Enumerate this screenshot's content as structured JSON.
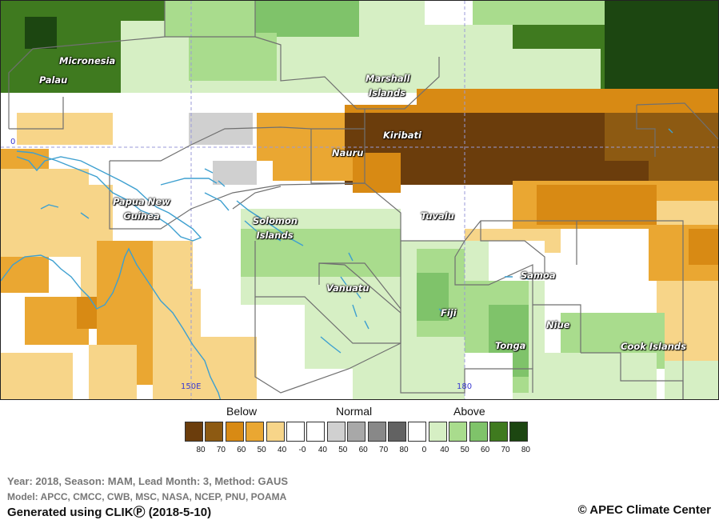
{
  "map": {
    "regions": [
      {
        "name": "Micronesia"
      },
      {
        "name": "Palau"
      },
      {
        "name": "Marshall Islands"
      },
      {
        "name": "Kiribati"
      },
      {
        "name": "Nauru"
      },
      {
        "name": "Papua New Guinea"
      },
      {
        "name": "Solomon Islands"
      },
      {
        "name": "Tuvalu"
      },
      {
        "name": "Vanuatu"
      },
      {
        "name": "Fiji"
      },
      {
        "name": "Samoa"
      },
      {
        "name": "Niue"
      },
      {
        "name": "Tonga"
      },
      {
        "name": "Cook Islands"
      }
    ],
    "axis_labels": {
      "lon_150": "150E",
      "lon_180": "180",
      "lat_0": "0"
    },
    "colors": {
      "coast": "#3ea0d0",
      "border": "#707070",
      "gridline": "#9a9ad8"
    }
  },
  "legend": {
    "below_label": "Below",
    "normal_label": "Normal",
    "above_label": "Above",
    "swatches": [
      {
        "color": "#6b3d0c"
      },
      {
        "color": "#8d5a12"
      },
      {
        "color": "#d88a14"
      },
      {
        "color": "#eaa732"
      },
      {
        "color": "#f7d589"
      },
      {
        "color": "#ffffff"
      },
      {
        "color": "#ffffff"
      },
      {
        "color": "#d0d0d0"
      },
      {
        "color": "#a8a8a8"
      },
      {
        "color": "#888888"
      },
      {
        "color": "#626262"
      },
      {
        "color": "#ffffff"
      },
      {
        "color": "#d6efc4"
      },
      {
        "color": "#a9dc8d"
      },
      {
        "color": "#7fc36a"
      },
      {
        "color": "#3f7a1f"
      },
      {
        "color": "#1c4611"
      }
    ],
    "ticks": [
      "80",
      "70",
      "60",
      "50",
      "40",
      "-0",
      "40",
      "50",
      "60",
      "70",
      "80",
      "0",
      "40",
      "50",
      "60",
      "70",
      "80"
    ]
  },
  "footer": {
    "year_line": "Year: 2018, Season: MAM, Lead Month: 3, Method: GAUS",
    "model_line": "Model: APCC, CMCC, CWB, MSC, NASA, NCEP, PNU, POAMA",
    "generated": "Generated using CLIKⓅ (2018-5-10)",
    "copyright": "© APEC Climate Center"
  }
}
